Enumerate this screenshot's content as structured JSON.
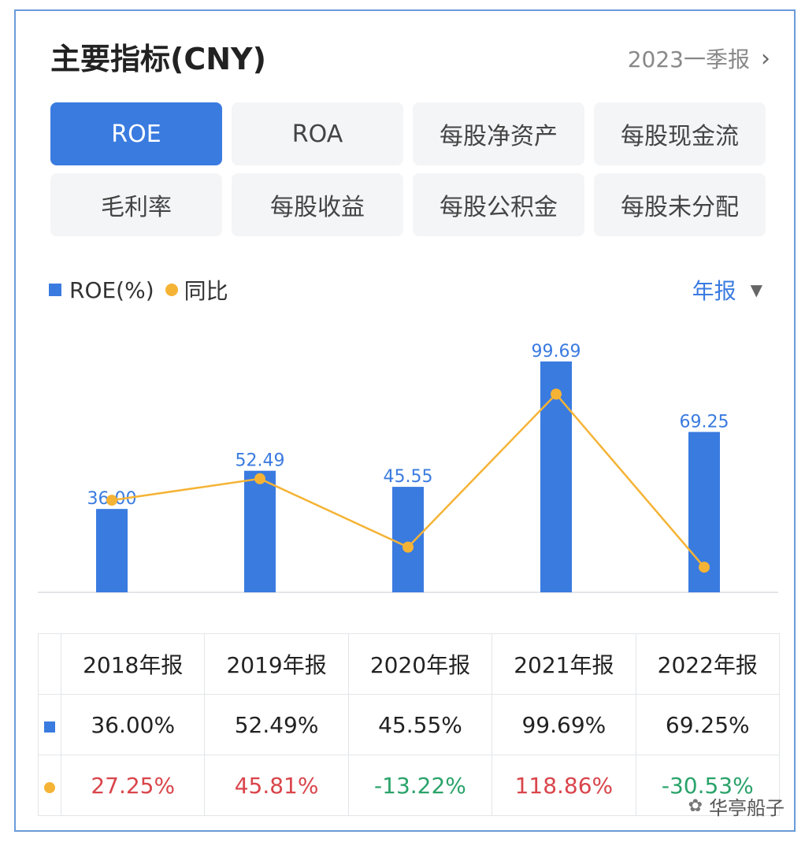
{
  "header": {
    "title": "主要指标(CNY)",
    "period": "2023一季报",
    "chevron": "›"
  },
  "tabs": [
    {
      "label": "ROE",
      "active": true
    },
    {
      "label": "ROA",
      "active": false
    },
    {
      "label": "每股净资产",
      "active": false
    },
    {
      "label": "每股现金流",
      "active": false
    },
    {
      "label": "毛利率",
      "active": false
    },
    {
      "label": "每股收益",
      "active": false
    },
    {
      "label": "每股公积金",
      "active": false
    },
    {
      "label": "每股未分配",
      "active": false
    }
  ],
  "legend": {
    "bar_label": "ROE(%)",
    "line_label": "同比"
  },
  "frequency": {
    "label": "年报",
    "arrow": "▼"
  },
  "colors": {
    "bar": "#3a7be0",
    "line": "#f5b335",
    "positive": "#d9454b",
    "negative": "#2aa36a",
    "border": "#6a9bd8"
  },
  "chart_data": {
    "type": "bar",
    "categories": [
      "2018年报",
      "2019年报",
      "2020年报",
      "2021年报",
      "2022年报"
    ],
    "series": [
      {
        "name": "ROE(%)",
        "type": "bar",
        "values": [
          36.0,
          52.49,
          45.55,
          99.69,
          69.25
        ],
        "labels": [
          "36.00",
          "52.49",
          "45.55",
          "99.69",
          "69.25"
        ]
      },
      {
        "name": "同比",
        "type": "line",
        "values": [
          27.25,
          45.81,
          -13.22,
          118.86,
          -30.53
        ]
      }
    ],
    "legend": "top-left",
    "grid": false
  },
  "table": {
    "headers": [
      "2018年报",
      "2019年报",
      "2020年报",
      "2021年报",
      "2022年报"
    ],
    "roe_row": [
      "36.00%",
      "52.49%",
      "45.55%",
      "99.69%",
      "69.25%"
    ],
    "yoy_row": [
      "27.25%",
      "45.81%",
      "-13.22%",
      "118.86%",
      "-30.53%"
    ]
  },
  "watermark": {
    "icon": "wechat-icon",
    "glyph": "✿",
    "text": "华亭船子"
  }
}
